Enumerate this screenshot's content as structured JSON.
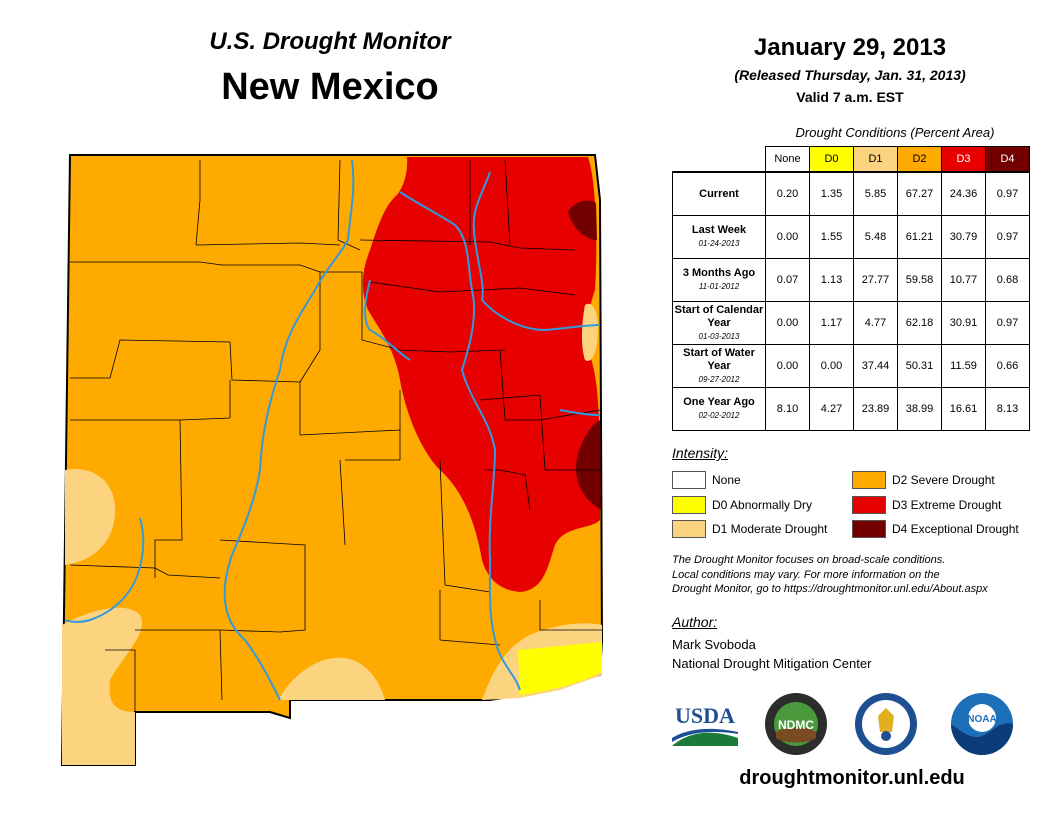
{
  "header": {
    "subtitle": "U.S. Drought Monitor",
    "state": "New Mexico",
    "date": "January 29, 2013",
    "released": "(Released Thursday, Jan. 31, 2013)",
    "valid": "Valid 7 a.m. EST"
  },
  "table": {
    "title": "Drought Conditions (Percent Area)",
    "columns": [
      "None",
      "D0",
      "D1",
      "D2",
      "D3",
      "D4"
    ],
    "column_colors": [
      "#ffffff",
      "#ffff00",
      "#fcd37f",
      "#ffaa00",
      "#e60000",
      "#730000"
    ],
    "rows": [
      {
        "label": "Current",
        "sub": "",
        "values": [
          "0.20",
          "1.35",
          "5.85",
          "67.27",
          "24.36",
          "0.97"
        ]
      },
      {
        "label": "Last Week",
        "sub": "01-24-2013",
        "values": [
          "0.00",
          "1.55",
          "5.48",
          "61.21",
          "30.79",
          "0.97"
        ]
      },
      {
        "label": "3 Months Ago",
        "sub": "11-01-2012",
        "values": [
          "0.07",
          "1.13",
          "27.77",
          "59.58",
          "10.77",
          "0.68"
        ]
      },
      {
        "label": "Start of Calendar Year",
        "sub": "01-03-2013",
        "values": [
          "0.00",
          "1.17",
          "4.77",
          "62.18",
          "30.91",
          "0.97"
        ]
      },
      {
        "label": "Start of Water Year",
        "sub": "09-27-2012",
        "values": [
          "0.00",
          "0.00",
          "37.44",
          "50.31",
          "11.59",
          "0.66"
        ]
      },
      {
        "label": "One Year Ago",
        "sub": "02-02-2012",
        "values": [
          "8.10",
          "4.27",
          "23.89",
          "38.99",
          "16.61",
          "8.13"
        ]
      }
    ]
  },
  "legend": {
    "title": "Intensity:",
    "items": [
      {
        "label": "None",
        "color": "#ffffff"
      },
      {
        "label": "D0 Abnormally Dry",
        "color": "#ffff00"
      },
      {
        "label": "D1 Moderate Drought",
        "color": "#fcd37f"
      },
      {
        "label": "D2 Severe Drought",
        "color": "#ffaa00"
      },
      {
        "label": "D3 Extreme Drought",
        "color": "#e60000"
      },
      {
        "label": "D4 Exceptional Drought",
        "color": "#730000"
      }
    ]
  },
  "note": {
    "line1": "The Drought Monitor focuses on broad-scale conditions.",
    "line2": "Local conditions may vary. For more information on the",
    "line3": "Drought Monitor, go to https://droughtmonitor.unl.edu/About.aspx"
  },
  "author": {
    "title": "Author:",
    "name": "Mark Svoboda",
    "org": "National Drought Mitigation Center"
  },
  "logos": {
    "usda": "USDA",
    "ndmc": "NDMC",
    "noaa": "NOAA"
  },
  "footer": {
    "url": "droughtmonitor.unl.edu"
  },
  "map": {
    "river_color": "#3399dd",
    "boundary_color": "#000000"
  }
}
